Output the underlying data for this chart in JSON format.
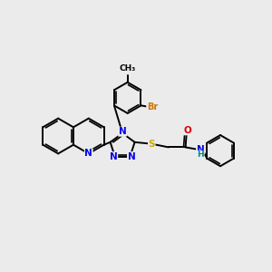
{
  "background_color": "#ebebeb",
  "bond_color": "#000000",
  "bond_width": 1.4,
  "atom_colors": {
    "N": "#0000ee",
    "O": "#dd0000",
    "S": "#ccaa00",
    "Br": "#cc7700",
    "C": "#000000",
    "H": "#008888"
  },
  "font_size": 7.5,
  "fig_size": [
    3.0,
    3.0
  ],
  "dpi": 100,
  "xlim": [
    -4.8,
    3.2
  ],
  "ylim": [
    -2.2,
    2.8
  ]
}
